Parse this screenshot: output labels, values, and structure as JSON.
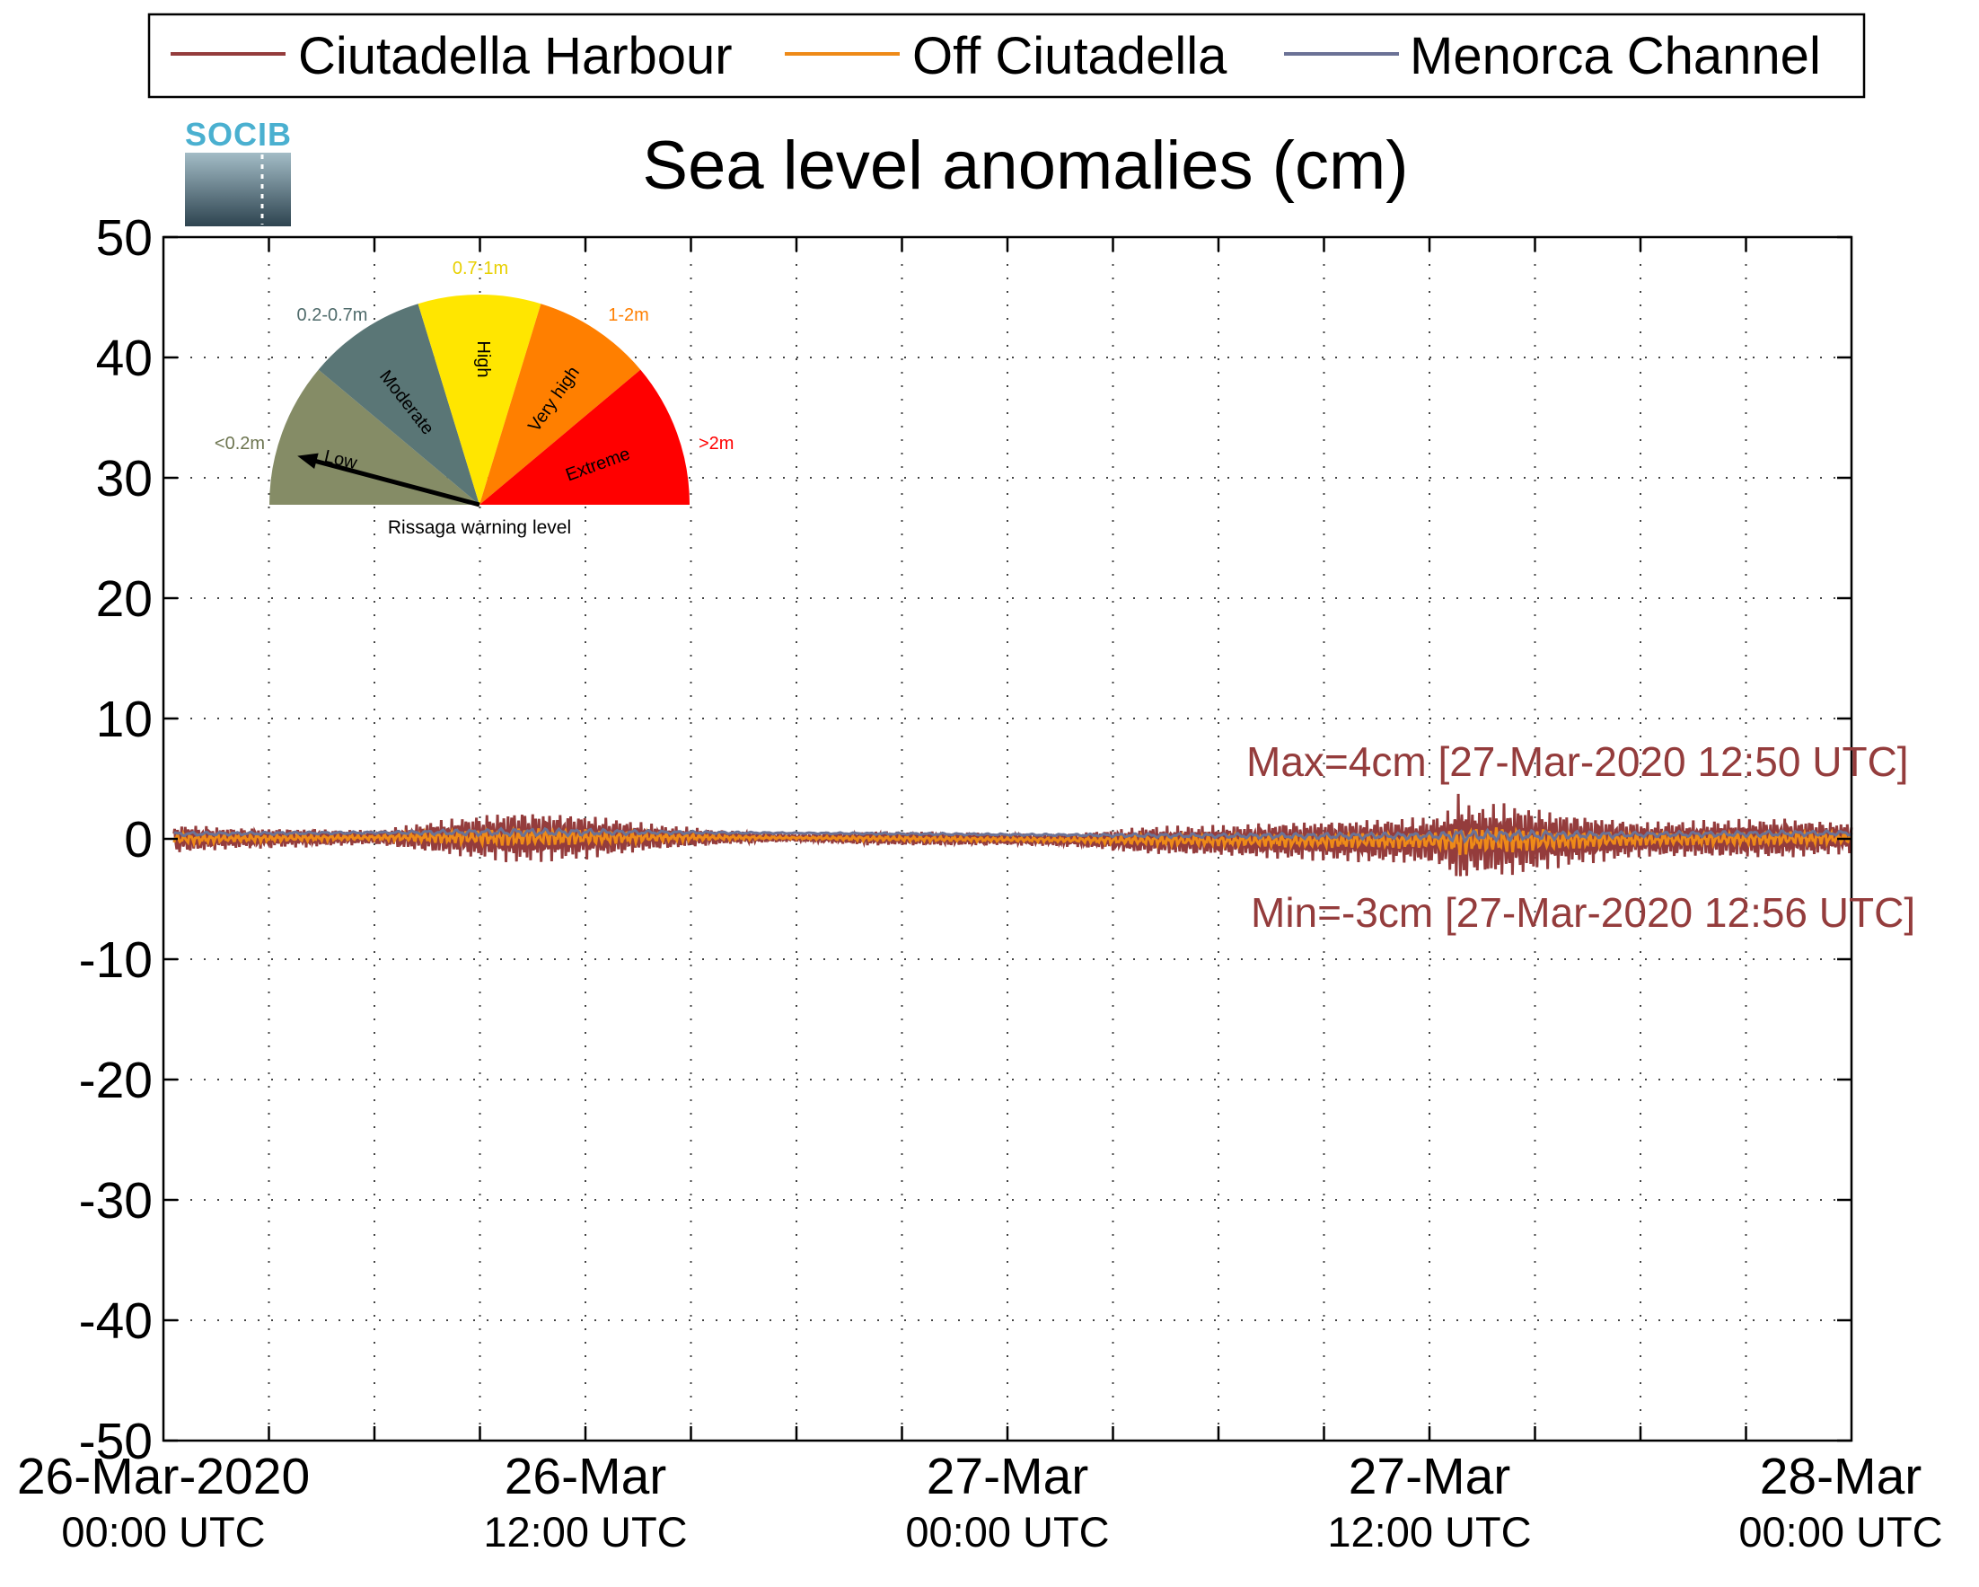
{
  "chart_data": {
    "type": "line",
    "title": "Sea level anomalies (cm)",
    "ylim": [
      -50,
      50
    ],
    "yticks": [
      50,
      40,
      30,
      20,
      10,
      0,
      -10,
      -20,
      -30,
      -40,
      -50
    ],
    "xlim": [
      "2020-03-26T00:00Z",
      "2020-03-28T00:00Z"
    ],
    "xticks": [
      {
        "t": "2020-03-26T00:00Z",
        "line1": "26-Mar-2020",
        "line2": "00:00 UTC"
      },
      {
        "t": "2020-03-26T12:00Z",
        "line1": "26-Mar",
        "line2": "12:00 UTC"
      },
      {
        "t": "2020-03-27T00:00Z",
        "line1": "27-Mar",
        "line2": "00:00 UTC"
      },
      {
        "t": "2020-03-27T12:00Z",
        "line1": "27-Mar",
        "line2": "12:00 UTC"
      },
      {
        "t": "2020-03-28T00:00Z",
        "line1": "28-Mar",
        "line2": "00:00 UTC"
      }
    ],
    "grid": true,
    "legend_position": "top",
    "series": [
      {
        "name": "Ciutadella Harbour",
        "color": "#943c3c",
        "amplitude_envelope": {
          "hours": [
            0,
            2,
            4,
            6,
            8,
            10,
            12,
            14,
            16,
            18,
            20,
            22,
            24,
            26,
            28,
            30,
            32,
            34,
            36,
            38,
            40,
            42,
            44,
            46,
            48
          ],
          "amplitude_cm": [
            1.3,
            0.9,
            0.8,
            0.6,
            1.5,
            2.2,
            1.9,
            1.1,
            0.6,
            0.3,
            0.6,
            0.6,
            0.5,
            0.6,
            1.2,
            1.3,
            1.6,
            1.8,
            2.0,
            3.2,
            2.2,
            1.5,
            1.6,
            1.7,
            1.3
          ]
        },
        "max_cm": 4,
        "max_time": "2020-03-27T12:50Z",
        "min_cm": -3,
        "min_time": "2020-03-27T12:56Z"
      },
      {
        "name": "Off Ciutadella",
        "color": "#ee8a18"
      },
      {
        "name": "Menorca Channel",
        "color": "#6b7296"
      }
    ],
    "annotations": {
      "max": "Max=4cm [27-Mar-2020 12:50 UTC]",
      "min": "Min=-3cm [27-Mar-2020 12:56 UTC]"
    }
  },
  "logo": {
    "text": "SOCIB"
  },
  "gauge": {
    "caption": "Rissaga warning level",
    "pointer_level": "Low",
    "levels": [
      {
        "name": "Low",
        "range": "<0.2m",
        "color": "#858c66",
        "range_color": "#6d7550"
      },
      {
        "name": "Moderate",
        "range": "0.2-0.7m",
        "color": "#5a7676",
        "range_color": "#4f6b6b"
      },
      {
        "name": "High",
        "range": "0.7-1m",
        "color": "#ffe600",
        "range_color": "#e8d000"
      },
      {
        "name": "Very high",
        "range": "1-2m",
        "color": "#ff7f00",
        "range_color": "#ff7f00"
      },
      {
        "name": "Extreme",
        "range": ">2m",
        "color": "#ff0000",
        "range_color": "#ff0000"
      }
    ]
  }
}
